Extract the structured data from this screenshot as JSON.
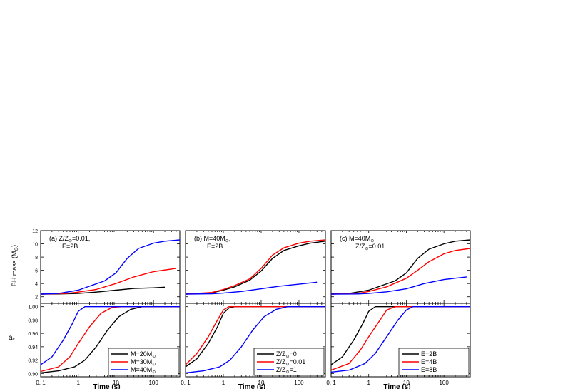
{
  "figure": {
    "ylabel_top": "BH mass (M",
    "ylabel_top_sub": "⊙",
    "ylabel_top_close": ")",
    "ylabel_bottom": "a",
    "ylabel_bottom_sub": "*",
    "xlabel": "Time (s)"
  },
  "chart_data": [
    {
      "type": "line",
      "panel_label": "(a) Z/Z",
      "panel_label_sub": "⊙",
      "panel_label_tail": "=0.01,",
      "panel_label_line2": "E=2B",
      "xscale": "log",
      "xlim": [
        0.1,
        500
      ],
      "ylim_top": [
        1,
        12
      ],
      "ylim_bottom": [
        0.895,
        1.005
      ],
      "xticks": [
        "0. 1",
        "1",
        "10",
        "100"
      ],
      "yticks_top": [
        "2",
        "4",
        "6",
        "8",
        "10",
        "12"
      ],
      "yticks_bottom": [
        "0.90",
        "0.92",
        "0.94",
        "0.96",
        "0.98",
        "1.00"
      ],
      "legend_position": "bottom-right",
      "series": [
        {
          "name": "M=20M",
          "name_sub": "⊙",
          "color": "#000000",
          "mass": [
            [
              0.1,
              2.4
            ],
            [
              0.3,
              2.42
            ],
            [
              1,
              2.5
            ],
            [
              3,
              2.7
            ],
            [
              10,
              3.0
            ],
            [
              30,
              3.25
            ],
            [
              100,
              3.35
            ],
            [
              200,
              3.45
            ]
          ],
          "spin": [
            [
              0.1,
              0.901
            ],
            [
              0.3,
              0.904
            ],
            [
              0.8,
              0.91
            ],
            [
              1.5,
              0.92
            ],
            [
              3,
              0.94
            ],
            [
              6,
              0.965
            ],
            [
              12,
              0.985
            ],
            [
              25,
              0.996
            ],
            [
              50,
              1.0
            ],
            [
              500,
              1.0
            ]
          ]
        },
        {
          "name": "M=30M",
          "name_sub": "⊙",
          "color": "#ff0000",
          "mass": [
            [
              0.1,
              2.4
            ],
            [
              0.5,
              2.5
            ],
            [
              1,
              2.7
            ],
            [
              3,
              3.1
            ],
            [
              10,
              4.0
            ],
            [
              30,
              5.0
            ],
            [
              100,
              5.8
            ],
            [
              400,
              6.3
            ]
          ],
          "spin": [
            [
              0.1,
              0.903
            ],
            [
              0.3,
              0.91
            ],
            [
              0.6,
              0.925
            ],
            [
              1,
              0.945
            ],
            [
              2,
              0.97
            ],
            [
              4,
              0.99
            ],
            [
              8,
              0.999
            ],
            [
              15,
              1.0
            ],
            [
              500,
              1.0
            ]
          ]
        },
        {
          "name": "M=40M",
          "name_sub": "⊙",
          "color": "#0000ff",
          "mass": [
            [
              0.1,
              2.4
            ],
            [
              0.3,
              2.5
            ],
            [
              1,
              3.0
            ],
            [
              2,
              3.6
            ],
            [
              5,
              4.4
            ],
            [
              10,
              5.6
            ],
            [
              20,
              7.8
            ],
            [
              40,
              9.3
            ],
            [
              100,
              10.1
            ],
            [
              200,
              10.4
            ],
            [
              500,
              10.6
            ]
          ],
          "spin": [
            [
              0.1,
              0.913
            ],
            [
              0.2,
              0.925
            ],
            [
              0.4,
              0.95
            ],
            [
              0.7,
              0.975
            ],
            [
              1,
              0.993
            ],
            [
              1.5,
              1.0
            ],
            [
              500,
              1.0
            ]
          ]
        }
      ]
    },
    {
      "type": "line",
      "panel_label": "(b) M=40M",
      "panel_label_sub": "⊙",
      "panel_label_tail": ",",
      "panel_label_line2": "E=2B",
      "xscale": "log",
      "xlim": [
        0.1,
        500
      ],
      "ylim_top": [
        1,
        12
      ],
      "ylim_bottom": [
        0.895,
        1.005
      ],
      "xticks": [
        "0. 1",
        "1",
        "10",
        "100"
      ],
      "legend_position": "bottom-right",
      "series": [
        {
          "name": "Z/Z",
          "name_sub": "⊙",
          "name_tail": "=0",
          "color": "#000000",
          "mass": [
            [
              0.1,
              2.4
            ],
            [
              0.5,
              2.6
            ],
            [
              1,
              3.0
            ],
            [
              2,
              3.5
            ],
            [
              5,
              4.5
            ],
            [
              10,
              5.9
            ],
            [
              20,
              7.8
            ],
            [
              40,
              9.0
            ],
            [
              100,
              9.7
            ],
            [
              200,
              10.1
            ],
            [
              500,
              10.4
            ]
          ],
          "spin": [
            [
              0.1,
              0.91
            ],
            [
              0.2,
              0.922
            ],
            [
              0.4,
              0.945
            ],
            [
              0.7,
              0.97
            ],
            [
              1,
              0.99
            ],
            [
              1.4,
              0.998
            ],
            [
              2,
              1.0
            ],
            [
              500,
              1.0
            ]
          ]
        },
        {
          "name": "Z/Z",
          "name_sub": "⊙",
          "name_tail": "=0.01",
          "color": "#ff0000",
          "mass": [
            [
              0.1,
              2.4
            ],
            [
              0.5,
              2.65
            ],
            [
              1,
              3.1
            ],
            [
              2,
              3.7
            ],
            [
              5,
              4.7
            ],
            [
              10,
              6.3
            ],
            [
              20,
              8.3
            ],
            [
              40,
              9.4
            ],
            [
              100,
              10.1
            ],
            [
              200,
              10.4
            ],
            [
              500,
              10.6
            ]
          ],
          "spin": [
            [
              0.1,
              0.913
            ],
            [
              0.2,
              0.93
            ],
            [
              0.4,
              0.955
            ],
            [
              0.7,
              0.98
            ],
            [
              1,
              0.995
            ],
            [
              1.4,
              1.0
            ],
            [
              500,
              1.0
            ]
          ]
        },
        {
          "name": "Z/Z",
          "name_sub": "⊙",
          "name_tail": "=1",
          "color": "#0000ff",
          "mass": [
            [
              0.1,
              2.4
            ],
            [
              0.5,
              2.45
            ],
            [
              1,
              2.55
            ],
            [
              3,
              2.8
            ],
            [
              10,
              3.2
            ],
            [
              30,
              3.6
            ],
            [
              100,
              3.9
            ],
            [
              300,
              4.2
            ]
          ],
          "spin": [
            [
              0.1,
              0.901
            ],
            [
              0.3,
              0.904
            ],
            [
              0.8,
              0.91
            ],
            [
              1.5,
              0.92
            ],
            [
              3,
              0.94
            ],
            [
              6,
              0.965
            ],
            [
              12,
              0.985
            ],
            [
              25,
              0.996
            ],
            [
              50,
              1.0
            ],
            [
              500,
              1.0
            ]
          ]
        }
      ]
    },
    {
      "type": "line",
      "panel_label": "(c) M=40M",
      "panel_label_sub": "⊙",
      "panel_label_tail": ",",
      "panel_label_line2": "Z/Z",
      "panel_label_line2_sub": "⊙",
      "panel_label_line2_tail": "=0.01",
      "xscale": "log",
      "xlim": [
        0.1,
        500
      ],
      "ylim_top": [
        1,
        12
      ],
      "ylim_bottom": [
        0.895,
        1.005
      ],
      "xticks": [
        "0. 1",
        "1",
        "10",
        "100"
      ],
      "legend_position": "bottom-right",
      "series": [
        {
          "name": "E=2B",
          "color": "#000000",
          "mass": [
            [
              0.1,
              2.4
            ],
            [
              0.3,
              2.5
            ],
            [
              1,
              3.0
            ],
            [
              2,
              3.6
            ],
            [
              5,
              4.4
            ],
            [
              10,
              5.6
            ],
            [
              20,
              7.8
            ],
            [
              40,
              9.2
            ],
            [
              100,
              10.0
            ],
            [
              200,
              10.4
            ],
            [
              500,
              10.6
            ]
          ],
          "spin": [
            [
              0.1,
              0.913
            ],
            [
              0.2,
              0.925
            ],
            [
              0.4,
              0.95
            ],
            [
              0.7,
              0.975
            ],
            [
              1,
              0.993
            ],
            [
              1.5,
              1.0
            ],
            [
              500,
              1.0
            ]
          ]
        },
        {
          "name": "E=4B",
          "color": "#ff0000",
          "mass": [
            [
              0.1,
              2.4
            ],
            [
              0.5,
              2.5
            ],
            [
              1,
              2.8
            ],
            [
              3,
              3.5
            ],
            [
              10,
              4.8
            ],
            [
              20,
              6.0
            ],
            [
              40,
              7.3
            ],
            [
              100,
              8.5
            ],
            [
              200,
              9.0
            ],
            [
              500,
              9.3
            ]
          ],
          "spin": [
            [
              0.1,
              0.905
            ],
            [
              0.3,
              0.915
            ],
            [
              0.6,
              0.935
            ],
            [
              1,
              0.955
            ],
            [
              2,
              0.98
            ],
            [
              3,
              0.995
            ],
            [
              5,
              1.0
            ],
            [
              500,
              1.0
            ]
          ]
        },
        {
          "name": "E=8B",
          "color": "#0000ff",
          "mass": [
            [
              0.1,
              2.4
            ],
            [
              0.5,
              2.42
            ],
            [
              1,
              2.5
            ],
            [
              3,
              2.75
            ],
            [
              10,
              3.2
            ],
            [
              30,
              4.0
            ],
            [
              100,
              4.6
            ],
            [
              400,
              5.0
            ]
          ],
          "spin": [
            [
              0.1,
              0.902
            ],
            [
              0.3,
              0.905
            ],
            [
              0.8,
              0.915
            ],
            [
              1.5,
              0.93
            ],
            [
              3,
              0.955
            ],
            [
              6,
              0.98
            ],
            [
              10,
              0.995
            ],
            [
              15,
              1.0
            ],
            [
              500,
              1.0
            ]
          ]
        }
      ]
    }
  ]
}
